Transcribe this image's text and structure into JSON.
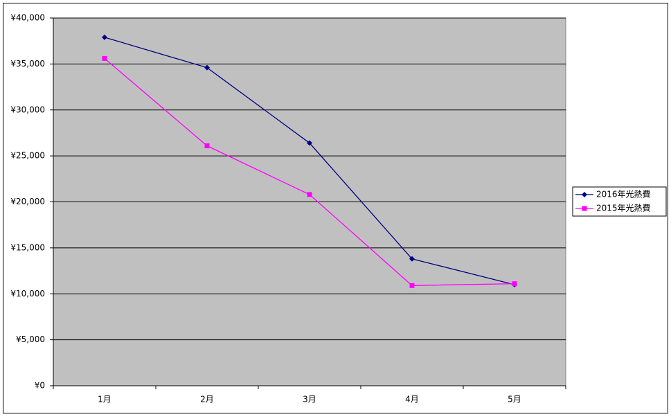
{
  "chart_data": {
    "type": "line",
    "categories": [
      "1月",
      "2月",
      "3月",
      "4月",
      "5月"
    ],
    "series": [
      {
        "name": "2016年光熱費",
        "color": "#000080",
        "marker": "diamond",
        "values": [
          37900,
          34600,
          26400,
          13800,
          11000
        ]
      },
      {
        "name": "2015年光熱費",
        "color": "#ff00ff",
        "marker": "square",
        "values": [
          35600,
          26100,
          20800,
          10900,
          11100
        ]
      }
    ],
    "ylim": [
      0,
      40000
    ],
    "yticks": [
      {
        "value": 0,
        "label": "¥0"
      },
      {
        "value": 5000,
        "label": "¥5,000"
      },
      {
        "value": 10000,
        "label": "¥10,000"
      },
      {
        "value": 15000,
        "label": "¥15,000"
      },
      {
        "value": 20000,
        "label": "¥20,000"
      },
      {
        "value": 25000,
        "label": "¥25,000"
      },
      {
        "value": 30000,
        "label": "¥30,000"
      },
      {
        "value": 35000,
        "label": "¥35,000"
      },
      {
        "value": 40000,
        "label": "¥40,000"
      }
    ],
    "grid": true,
    "legend": "right",
    "plot_background": "#c0c0c0"
  }
}
